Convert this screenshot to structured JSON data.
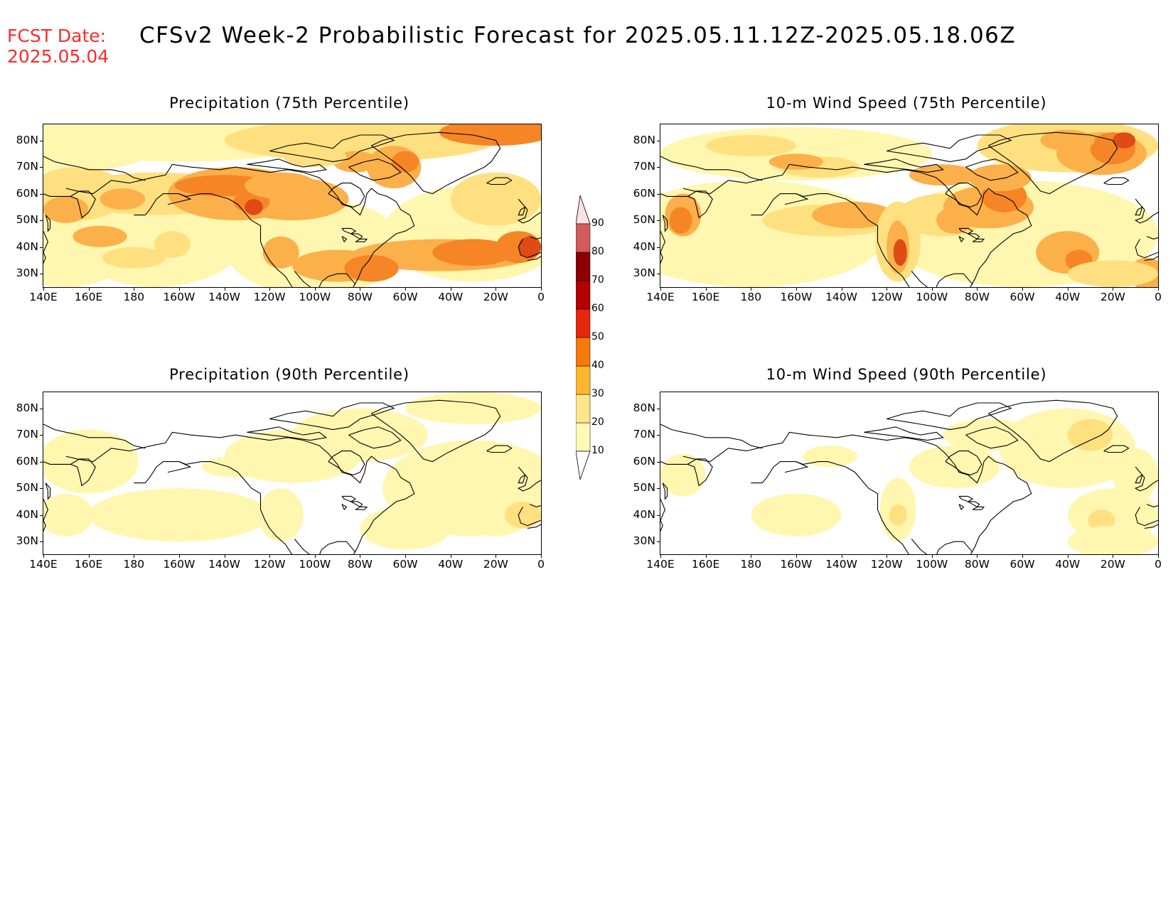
{
  "header": {
    "fcst_label": "FCST Date:",
    "fcst_date": "2025.05.04",
    "title": "CFSv2 Week-2 Probabilistic Forecast for 2025.05.11.12Z-2025.05.18.06Z"
  },
  "panels": [
    {
      "id": "precip75",
      "title": "Precipitation (75th Percentile)"
    },
    {
      "id": "wind75",
      "title": "10-m Wind Speed (75th Percentile)"
    },
    {
      "id": "precip90",
      "title": "Precipitation (90th Percentile)"
    },
    {
      "id": "wind90",
      "title": "10-m Wind Speed (90th Percentile)"
    }
  ],
  "lat_labels": [
    "80N",
    "70N",
    "60N",
    "50N",
    "40N",
    "30N"
  ],
  "lon_labels": [
    "140E",
    "160E",
    "180",
    "160W",
    "140W",
    "120W",
    "100W",
    "80W",
    "60W",
    "40W",
    "20W",
    "0"
  ],
  "colorbar": {
    "levels": [
      "10",
      "20",
      "30",
      "40",
      "50",
      "60",
      "70",
      "80",
      "90"
    ],
    "colors": [
      "#fff9b8",
      "#fee58a",
      "#fdb62e",
      "#f57a0e",
      "#e8280a",
      "#b40000",
      "#8c0000",
      "#d25c5c",
      "#f2a4a8"
    ]
  },
  "palette": {
    "c10": "#fff7b0",
    "c20": "#ffe080",
    "c30": "#fcb04a",
    "c40": "#f68526",
    "c50": "#e04a14",
    "c60": "#b81c0a",
    "coast": "#000000"
  }
}
